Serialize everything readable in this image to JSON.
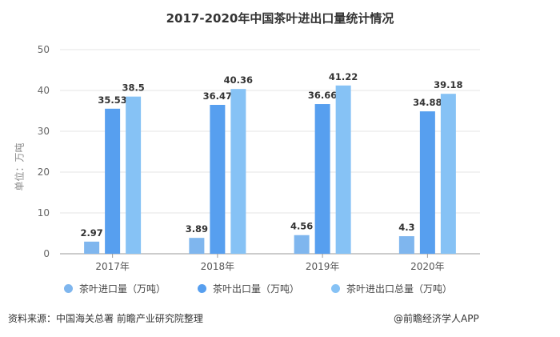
{
  "title": "2017-2020年中国茶叶进出口量统计情况",
  "y_axis_unit": "单位：万吨",
  "legend": [
    {
      "label": "茶叶进口量（万吨）",
      "color": "#7FB6EE"
    },
    {
      "label": "茶叶出口量（万吨）",
      "color": "#579FEF"
    },
    {
      "label": "茶叶进出口总量（万吨）",
      "color": "#86C2F5"
    }
  ],
  "footer": {
    "source": "资料来源：中国海关总署 前瞻产业研究院整理",
    "credit": "@前瞻经济学人APP"
  },
  "chart_data": {
    "type": "bar",
    "title": "2017-2020年中国茶叶进出口量统计情况",
    "xlabel": "",
    "ylabel": "单位：万吨",
    "categories": [
      "2017年",
      "2018年",
      "2019年",
      "2020年"
    ],
    "series": [
      {
        "name": "茶叶进口量（万吨）",
        "values": [
          2.97,
          3.89,
          4.56,
          4.3
        ],
        "color": "#7FB6EE"
      },
      {
        "name": "茶叶出口量（万吨）",
        "values": [
          35.53,
          36.47,
          36.66,
          34.88
        ],
        "color": "#579FEF"
      },
      {
        "name": "茶叶进出口总量（万吨）",
        "values": [
          38.5,
          40.36,
          41.22,
          39.18
        ],
        "color": "#86C2F5"
      }
    ],
    "ylim": [
      0,
      50
    ],
    "yticks": [
      0,
      10,
      20,
      30,
      40,
      50
    ],
    "grid": true,
    "legend_position": "bottom"
  }
}
